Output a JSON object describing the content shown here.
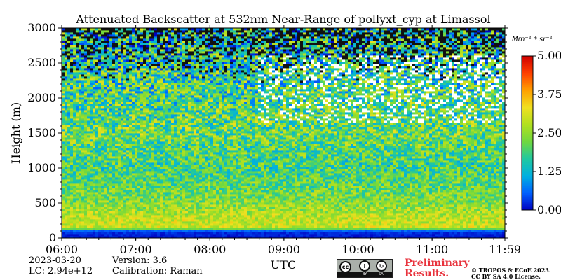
{
  "chart_data": {
    "type": "heatmap",
    "title": "Attenuated Backscatter at 532nm Near-Range of pollyxt_cyp at Limassol",
    "xlabel": "UTC",
    "ylabel": "Height (m)",
    "xlim": [
      "06:00",
      "11:59"
    ],
    "ylim": [
      0,
      3000
    ],
    "x_ticks": [
      "06:00",
      "07:00",
      "08:00",
      "09:00",
      "10:00",
      "11:00",
      "11:59"
    ],
    "y_ticks": [
      0,
      500,
      1000,
      1500,
      2000,
      2500,
      3000
    ],
    "colorbar": {
      "unit_label": "Mm⁻¹ * sr⁻¹",
      "min": 0.0,
      "max": 5.0,
      "tick_labels": [
        "0.00",
        "1.25",
        "2.50",
        "3.75",
        "5.00"
      ],
      "colors": [
        "#0000c0",
        "#0060ff",
        "#00b0e0",
        "#20c8a0",
        "#70d840",
        "#b0e020",
        "#f0e020",
        "#ffa000",
        "#ff4000",
        "#d00000"
      ]
    },
    "profile": [
      {
        "height": 0,
        "value": 0.1
      },
      {
        "height": 100,
        "value": 0.3
      },
      {
        "height": 150,
        "value": 3.0
      },
      {
        "height": 300,
        "value": 2.9
      },
      {
        "height": 500,
        "value": 2.4
      },
      {
        "height": 1000,
        "value": 1.9
      },
      {
        "height": 1500,
        "value": 2.2
      },
      {
        "height": 2000,
        "value": 2.0
      },
      {
        "height": 2500,
        "value": 1.7
      },
      {
        "height": 3000,
        "value": 1.5
      }
    ],
    "cloud_layer": {
      "base": 1650,
      "top": 2600,
      "start": "08:40",
      "end": "11:59"
    }
  },
  "info": {
    "date": "2023-03-20",
    "lc": "LC: 2.94e+12",
    "version": "Version: 3.6",
    "calibration": "Calibration: Raman",
    "preliminary_line1": "Preliminary",
    "preliminary_line2": "Results.",
    "copyright_line1": "© TROPOS & ECoE 2023.",
    "copyright_line2": "CC BY SA 4.0 License.",
    "license_badge": {
      "cc": "cc",
      "by": "BY",
      "sa": "SA"
    }
  }
}
